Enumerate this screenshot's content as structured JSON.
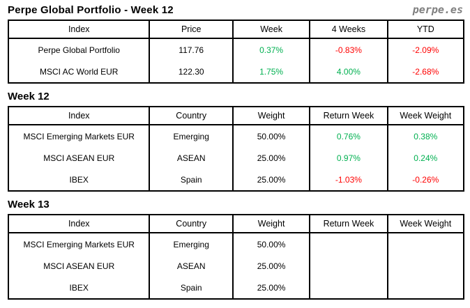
{
  "header": {
    "title": "Perpe Global Portfolio - Week 12",
    "logo": "perpe.es"
  },
  "colors": {
    "positive_green": "#00B050",
    "negative_red": "#FF0000",
    "logo_gray": "#808080",
    "border_black": "#000000"
  },
  "summary_table": {
    "headers": [
      "Index",
      "Price",
      "Week",
      "4 Weeks",
      "YTD"
    ],
    "rows": [
      [
        "Perpe Global Portfolio",
        "117.76",
        "0.37%",
        "-0.83%",
        "-2.09%"
      ],
      [
        "MSCI AC World EUR",
        "122.30",
        "1.75%",
        "4.00%",
        "-2.68%"
      ]
    ]
  },
  "week12_section": {
    "label": "Week 12",
    "table": {
      "headers": [
        "Index",
        "Country",
        "Weight",
        "Return Week",
        "Week Weight"
      ],
      "rows": [
        [
          "MSCI Emerging Markets EUR",
          "Emerging",
          "50.00%",
          "0.76%",
          "0.38%"
        ],
        [
          "MSCI ASEAN EUR",
          "ASEAN",
          "25.00%",
          "0.97%",
          "0.24%"
        ],
        [
          "IBEX",
          "Spain",
          "25.00%",
          "-1.03%",
          "-0.26%"
        ]
      ]
    }
  },
  "week13_section": {
    "label": "Week 13",
    "table": {
      "headers": [
        "Index",
        "Country",
        "Weight",
        "Return Week",
        "Week Weight"
      ],
      "rows": [
        [
          "MSCI Emerging Markets EUR",
          "Emerging",
          "50.00%",
          "",
          ""
        ],
        [
          "MSCI ASEAN EUR",
          "ASEAN",
          "25.00%",
          "",
          ""
        ],
        [
          "IBEX",
          "Spain",
          "25.00%",
          "",
          ""
        ]
      ]
    }
  }
}
